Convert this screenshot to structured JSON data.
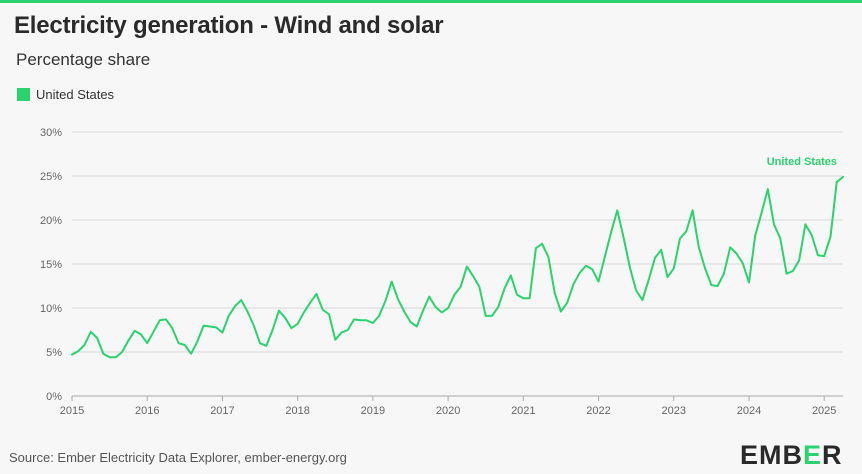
{
  "header": {
    "title": "Electricity generation - Wind and solar",
    "subtitle": "Percentage share"
  },
  "legend": {
    "label": "United States",
    "color": "#2bd36f"
  },
  "footer": {
    "source": "Source: Ember Electricity Data Explorer, ember-energy.org",
    "logo_part1": "EMB",
    "logo_accent": "E",
    "logo_part2": "R"
  },
  "chart_data": {
    "type": "line",
    "series_color": "#2bd36f",
    "grid_color": "#d9d9d9",
    "axis_color": "#aaaaaa",
    "xlim": [
      2015.0,
      2025.25
    ],
    "ylim": [
      0,
      30
    ],
    "xticks": [
      2015,
      2016,
      2017,
      2018,
      2019,
      2020,
      2021,
      2022,
      2023,
      2024,
      2025
    ],
    "xtick_labels": [
      "2015",
      "2016",
      "2017",
      "2018",
      "2019",
      "2020",
      "2021",
      "2022",
      "2023",
      "2024",
      "2025"
    ],
    "yticks": [
      0,
      5,
      10,
      15,
      20,
      25,
      30
    ],
    "ytick_labels": [
      "0%",
      "5%",
      "10%",
      "15%",
      "20%",
      "25%",
      "30%"
    ],
    "series": [
      {
        "name": "United States",
        "end_label": "United States",
        "start": "2015-01",
        "frequency": "monthly",
        "values": [
          4.7,
          5.1,
          5.8,
          7.3,
          6.6,
          4.8,
          4.4,
          4.4,
          5.0,
          6.3,
          7.4,
          7.0,
          6.0,
          7.3,
          8.6,
          8.7,
          7.7,
          6.0,
          5.8,
          4.8,
          6.2,
          8.0,
          7.9,
          7.8,
          7.2,
          9.1,
          10.2,
          10.9,
          9.6,
          8.0,
          6.0,
          5.7,
          7.5,
          9.7,
          8.9,
          7.7,
          8.2,
          9.5,
          10.6,
          11.6,
          9.8,
          9.3,
          6.4,
          7.2,
          7.5,
          8.7,
          8.6,
          8.6,
          8.3,
          9.1,
          10.8,
          13.0,
          11.0,
          9.6,
          8.4,
          7.9,
          9.7,
          11.3,
          10.1,
          9.5,
          10.0,
          11.5,
          12.4,
          14.7,
          13.6,
          12.4,
          9.1,
          9.1,
          10.1,
          12.2,
          13.7,
          11.5,
          11.1,
          11.1,
          16.8,
          17.3,
          15.8,
          11.7,
          9.6,
          10.6,
          12.7,
          14.0,
          14.8,
          14.4,
          13.0,
          15.8,
          18.6,
          21.1,
          18.0,
          14.6,
          12.0,
          10.9,
          13.2,
          15.7,
          16.6,
          13.5,
          14.5,
          17.9,
          18.7,
          21.1,
          16.9,
          14.5,
          12.6,
          12.5,
          13.9,
          16.9,
          16.2,
          15.1,
          12.9,
          18.2,
          20.8,
          23.5,
          19.5,
          17.9,
          13.9,
          14.2,
          15.4,
          19.5,
          18.3,
          16.0,
          15.9,
          18.1,
          24.3,
          24.9
        ]
      }
    ]
  }
}
